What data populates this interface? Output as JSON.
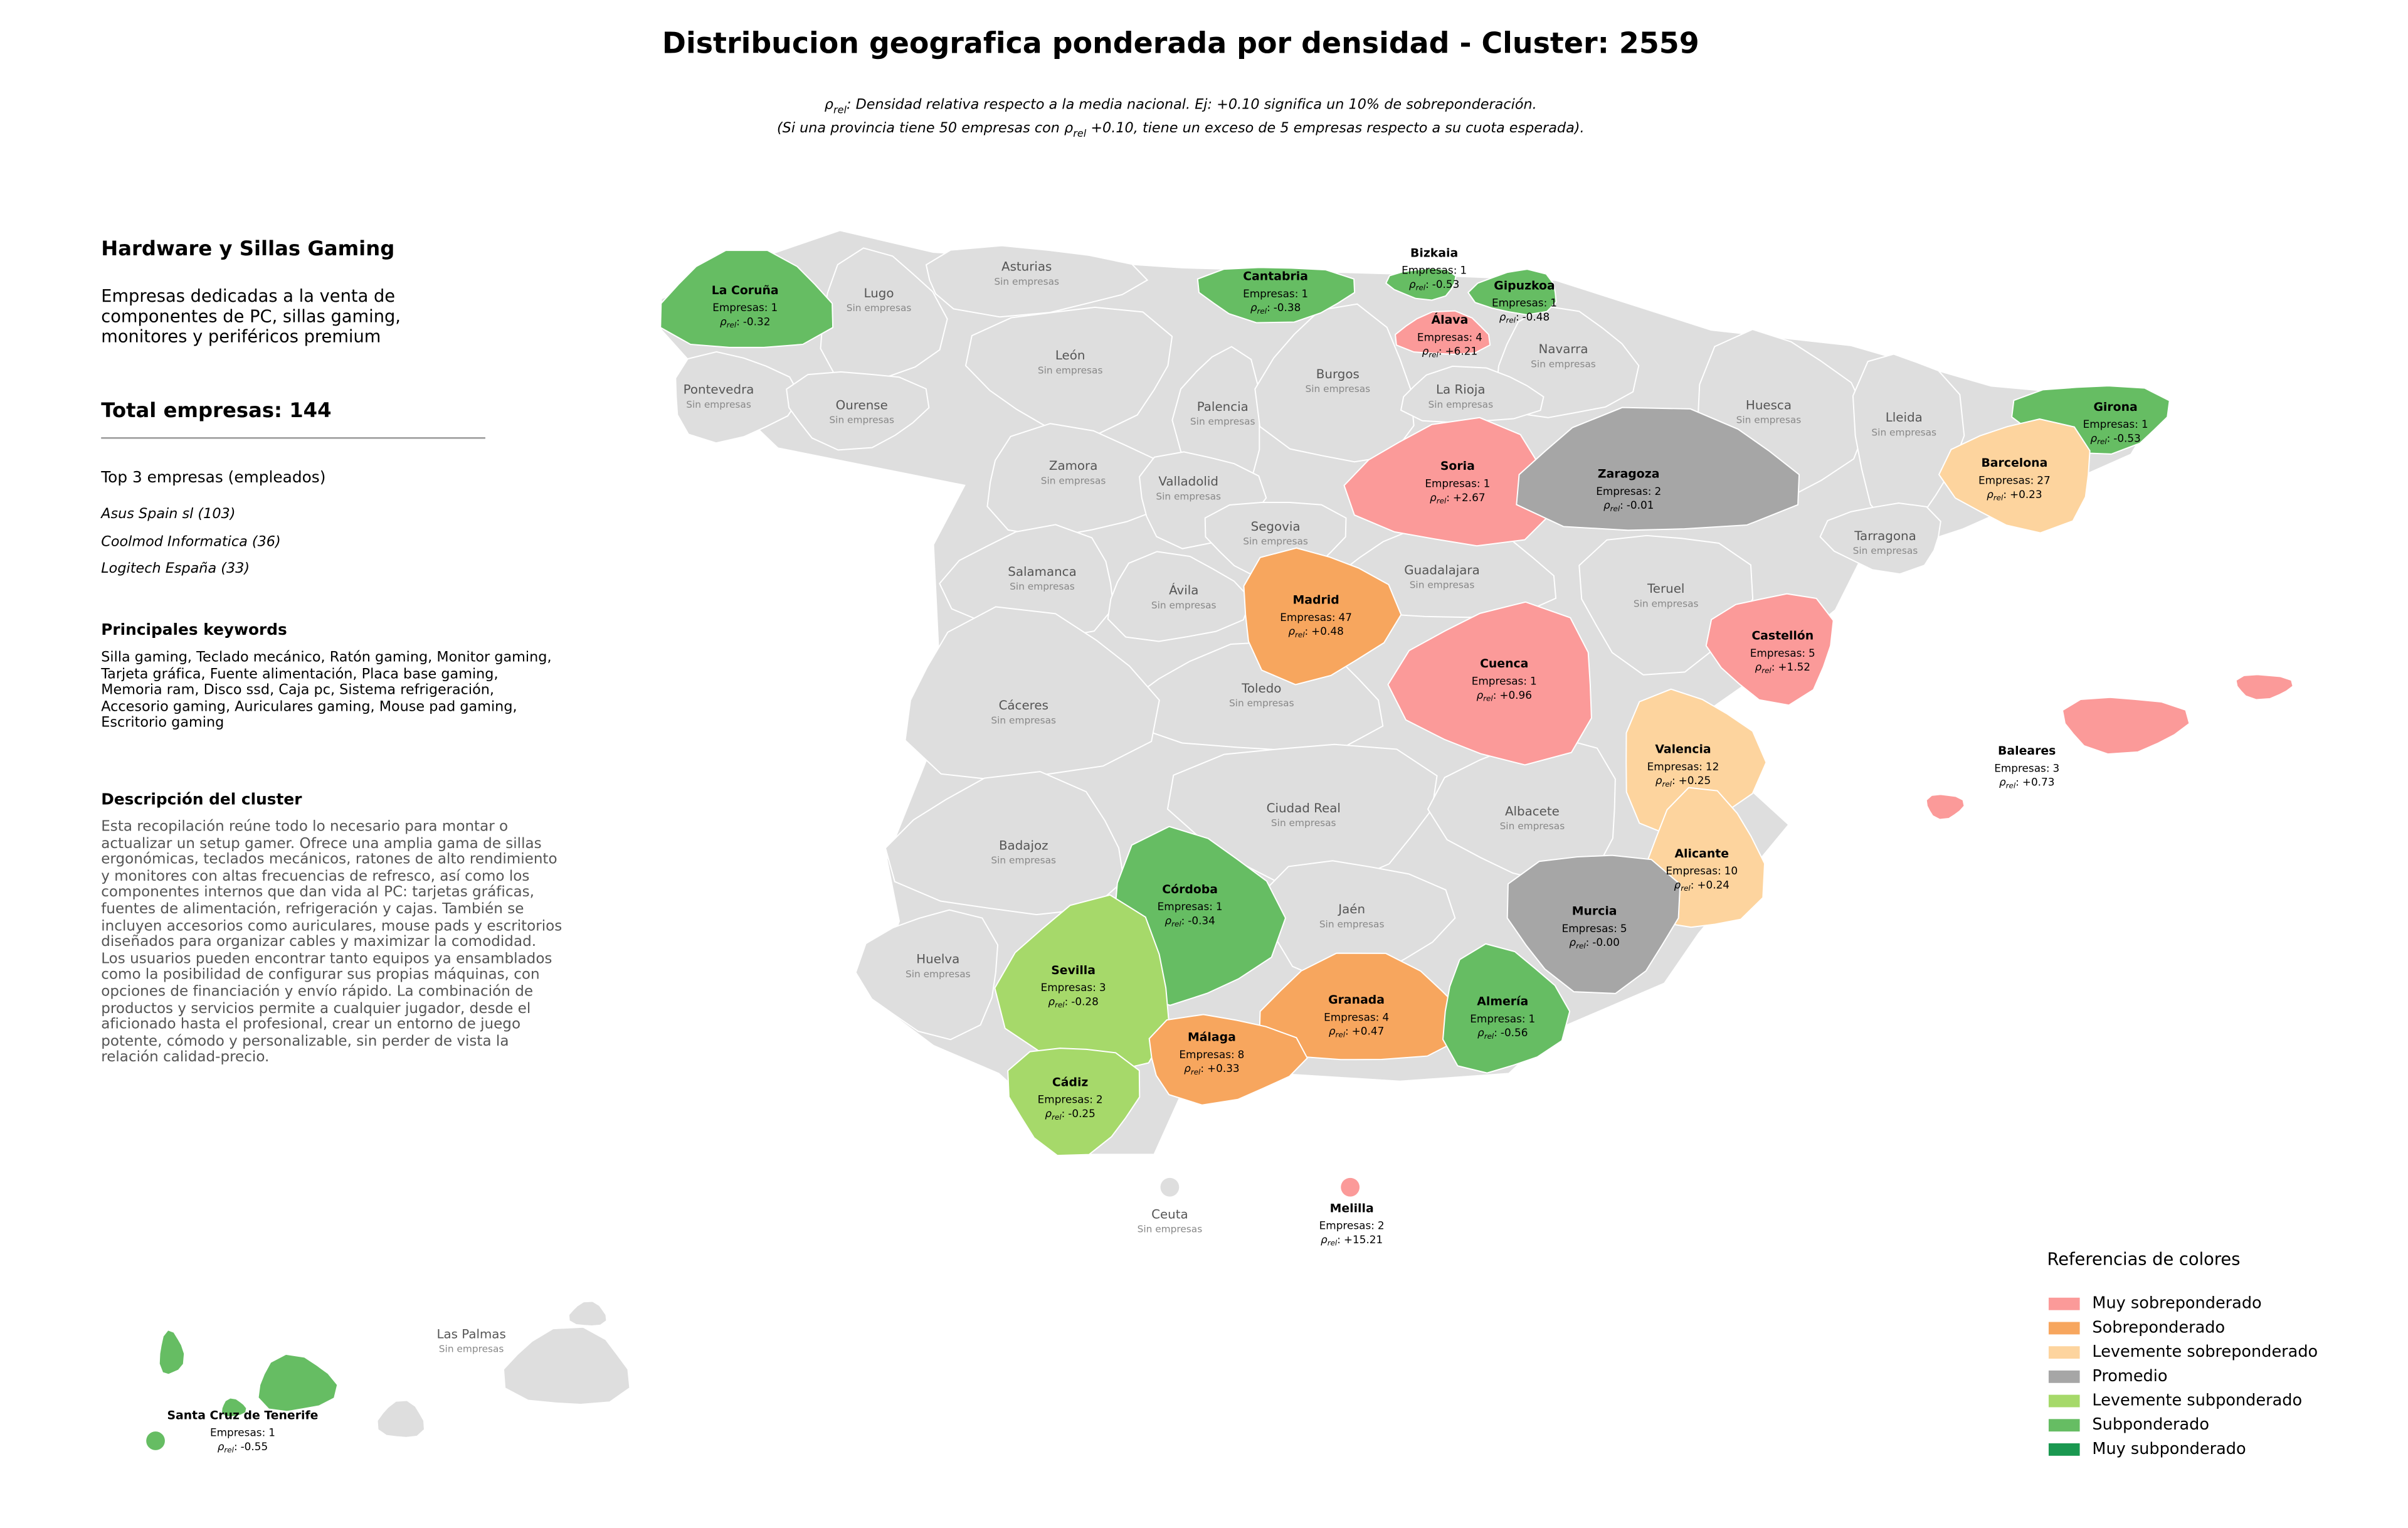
{
  "header": {
    "title": "Distribucion geografica ponderada por densidad - Cluster: 2559",
    "note_lines": [
      [
        {
          "text": "ρ"
        },
        {
          "text": "rel",
          "sub": true
        },
        {
          "text": ": Densidad relativa respecto a la media nacional. Ej: +0.10 significa un 10% de sobreponderación."
        }
      ],
      [
        {
          "text": "(Si una provincia tiene 50 empresas con "
        },
        {
          "text": "ρ"
        },
        {
          "text": "rel",
          "sub": true
        },
        {
          "text": " +0.10, tiene un exceso de 5 empresas respecto a su cuota esperada)."
        }
      ]
    ]
  },
  "sidebar": {
    "title": "Hardware y Sillas Gaming",
    "summary": "Empresas dedicadas a la venta de componentes de PC, sillas gaming, monitores y periféricos premium",
    "total_label": "Total empresas:",
    "total": 144,
    "top_title": "Top 3 empresas (empleados)",
    "top": [
      "Asus Spain sl (103)",
      "Coolmod Informatica (36)",
      "Logitech España (33)"
    ],
    "keywords_title": "Principales keywords",
    "keywords": "Silla gaming, Teclado mecánico, Ratón gaming, Monitor gaming, Tarjeta gráfica, Fuente alimentación, Placa base gaming, Memoria ram, Disco ssd, Caja pc, Sistema refrigeración, Accesorio gaming, Auriculares gaming, Mouse pad gaming, Escritorio gaming",
    "description_title": "Descripción del cluster",
    "description": "Esta recopilación reúne todo lo necesario para montar o actualizar un setup gamer. Ofrece una amplia gama de sillas ergonómicas, teclados mecánicos, ratones de alto rendimiento y monitores con altas frecuencias de refresco, así como los componentes internos que dan vida al PC: tarjetas gráficas, fuentes de alimentación, refrigeración y cajas. También se incluyen accesorios como auriculares, mouse pads y escritorios diseñados para organizar cables y maximizar la comodidad. Los usuarios pueden encontrar tanto equipos ya ensamblados como la posibilidad de configurar sus propias máquinas, con opciones de financiación y envío rápido. La combinación de productos y servicios permite a cualquier jugador, desde el aficionado hasta el profesional, crear un entorno de juego potente, cómodo y personalizable, sin perder de vista la relación calidad-precio."
  },
  "map": {
    "empresas_label": "Empresas:",
    "rho_label": {
      "symbol": "ρ",
      "subscript": "rel",
      "suffix": ":"
    },
    "no_data_label": "Sin empresas",
    "no_data_color": "#dedede",
    "provinces": [
      {
        "name": "La Coruña",
        "empresas": 1,
        "rho": "-0.32",
        "color": "#66bd63"
      },
      {
        "name": "Lugo"
      },
      {
        "name": "Asturias"
      },
      {
        "name": "Cantabria",
        "empresas": 1,
        "rho": "-0.38",
        "color": "#66bd63"
      },
      {
        "name": "Bizkaia",
        "empresas": 1,
        "rho": "-0.53",
        "color": "#66bd63"
      },
      {
        "name": "Gipuzkoa",
        "empresas": 1,
        "rho": "-0.48",
        "color": "#66bd63"
      },
      {
        "name": "Álava",
        "empresas": 4,
        "rho": "+6.21",
        "color": "#fb9a99"
      },
      {
        "name": "Navarra"
      },
      {
        "name": "Pontevedra"
      },
      {
        "name": "Ourense"
      },
      {
        "name": "León"
      },
      {
        "name": "Palencia"
      },
      {
        "name": "Burgos"
      },
      {
        "name": "La Rioja"
      },
      {
        "name": "Huesca"
      },
      {
        "name": "Lleida"
      },
      {
        "name": "Girona",
        "empresas": 1,
        "rho": "-0.53",
        "color": "#66bd63"
      },
      {
        "name": "Barcelona",
        "empresas": 27,
        "rho": "+0.23",
        "color": "#fdd49e"
      },
      {
        "name": "Soria",
        "empresas": 1,
        "rho": "+2.67",
        "color": "#fb9a99"
      },
      {
        "name": "Zaragoza",
        "empresas": 2,
        "rho": "-0.01",
        "color": "#a6a6a6"
      },
      {
        "name": "Zamora"
      },
      {
        "name": "Valladolid"
      },
      {
        "name": "Segovia"
      },
      {
        "name": "Tarragona"
      },
      {
        "name": "Salamanca"
      },
      {
        "name": "Guadalajara"
      },
      {
        "name": "Ávila"
      },
      {
        "name": "Madrid",
        "empresas": 47,
        "rho": "+0.48",
        "color": "#f7a65e"
      },
      {
        "name": "Teruel"
      },
      {
        "name": "Castellón",
        "empresas": 5,
        "rho": "+1.52",
        "color": "#fb9a99"
      },
      {
        "name": "Cuenca",
        "empresas": 1,
        "rho": "+0.96",
        "color": "#fb9a99"
      },
      {
        "name": "Toledo"
      },
      {
        "name": "Cáceres"
      },
      {
        "name": "Valencia",
        "empresas": 12,
        "rho": "+0.25",
        "color": "#fdd49e"
      },
      {
        "name": "Baleares",
        "empresas": 3,
        "rho": "+0.73",
        "color": "#fb9a99"
      },
      {
        "name": "Ciudad Real"
      },
      {
        "name": "Albacete"
      },
      {
        "name": "Badajoz"
      },
      {
        "name": "Alicante",
        "empresas": 10,
        "rho": "+0.24",
        "color": "#fdd49e"
      },
      {
        "name": "Córdoba",
        "empresas": 1,
        "rho": "-0.34",
        "color": "#66bd63"
      },
      {
        "name": "Jaén"
      },
      {
        "name": "Murcia",
        "empresas": 5,
        "rho": "-0.00",
        "color": "#a6a6a6"
      },
      {
        "name": "Huelva"
      },
      {
        "name": "Sevilla",
        "empresas": 3,
        "rho": "-0.28",
        "color": "#a6d96a"
      },
      {
        "name": "Granada",
        "empresas": 4,
        "rho": "+0.47",
        "color": "#f7a65e"
      },
      {
        "name": "Almería",
        "empresas": 1,
        "rho": "-0.56",
        "color": "#66bd63"
      },
      {
        "name": "Málaga",
        "empresas": 8,
        "rho": "+0.33",
        "color": "#f7a65e"
      },
      {
        "name": "Cádiz",
        "empresas": 2,
        "rho": "-0.25",
        "color": "#a6d96a"
      },
      {
        "name": "Ceuta"
      },
      {
        "name": "Melilla",
        "empresas": 2,
        "rho": "+15.21",
        "color": "#fb9a99"
      },
      {
        "name": "Las Palmas"
      },
      {
        "name": "Santa Cruz de Tenerife",
        "empresas": 1,
        "rho": "-0.55",
        "color": "#66bd63"
      }
    ]
  },
  "legend": {
    "title": "Referencias de colores",
    "items": [
      {
        "name": "Muy sobreponderado",
        "color": "#fb9a99"
      },
      {
        "name": "Sobreponderado",
        "color": "#f7a65e"
      },
      {
        "name": "Levemente sobreponderado",
        "color": "#fdd49e"
      },
      {
        "name": "Promedio",
        "color": "#a6a6a6"
      },
      {
        "name": "Levemente subponderado",
        "color": "#a6d96a"
      },
      {
        "name": "Subponderado",
        "color": "#66bd63"
      },
      {
        "name": "Muy subponderado",
        "color": "#1a9850"
      }
    ]
  }
}
